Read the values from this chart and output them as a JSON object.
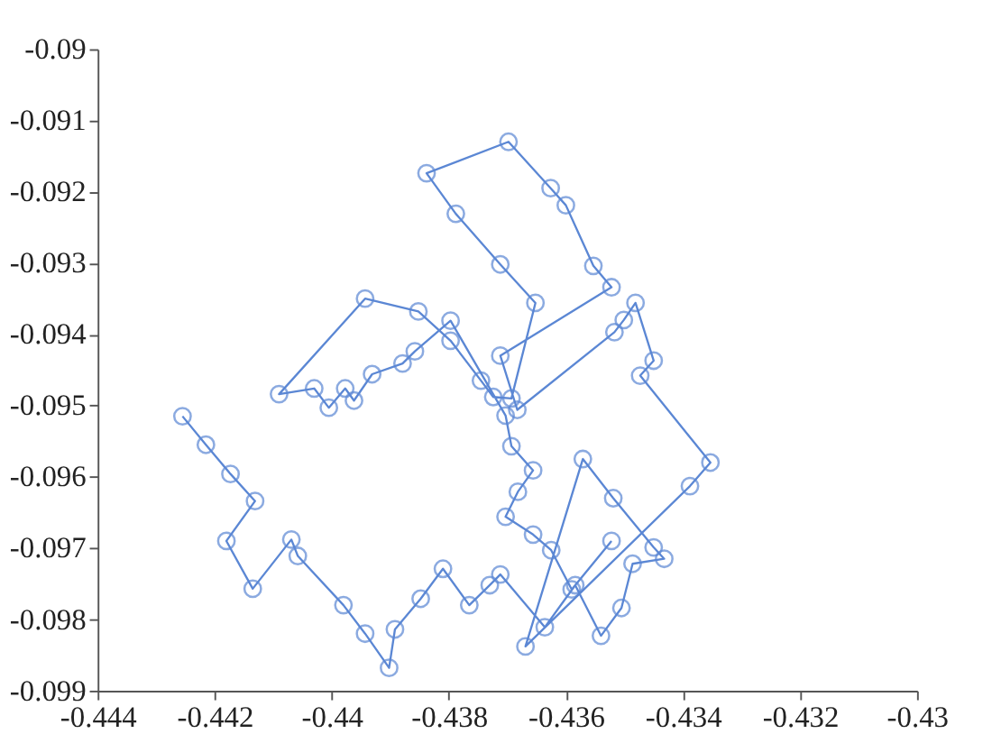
{
  "chart_data": {
    "type": "line",
    "marker": "circle",
    "line_style": "solid",
    "grid": false,
    "xlim": [
      -0.444,
      -0.43
    ],
    "ylim": [
      -0.099,
      -0.09
    ],
    "xticks": [
      -0.444,
      -0.442,
      -0.44,
      -0.438,
      -0.436,
      -0.434,
      -0.432,
      -0.43
    ],
    "yticks": [
      -0.099,
      -0.098,
      -0.097,
      -0.096,
      -0.095,
      -0.094,
      -0.093,
      -0.092,
      -0.091,
      -0.09
    ],
    "series": [
      {
        "color": "#5b87d4",
        "x": [
          -0.44255,
          -0.44215,
          -0.44173,
          -0.44131,
          -0.4418,
          -0.44135,
          -0.44069,
          -0.44058,
          -0.4398,
          -0.43943,
          -0.43902,
          -0.43892,
          -0.43848,
          -0.4381,
          -0.43765,
          -0.4373,
          -0.43712,
          -0.43636,
          -0.43584,
          -0.4354,
          -0.43505,
          -0.43486,
          -0.43432,
          -0.4345,
          -0.43519,
          -0.43571,
          -0.43669,
          -0.43388,
          -0.43353,
          -0.43473,
          -0.4345,
          -0.43481,
          -0.43501,
          -0.43517,
          -0.43683,
          -0.43712,
          -0.43522,
          -0.43553,
          -0.436,
          -0.43626,
          -0.43698,
          -0.43838,
          -0.43788,
          -0.43712,
          -0.43652,
          -0.43693,
          -0.43724,
          -0.43745,
          -0.43797,
          -0.43852,
          -0.43943,
          -0.4409,
          -0.4403,
          -0.44005,
          -0.43977,
          -0.43962,
          -0.43931,
          -0.43879,
          -0.43858,
          -0.43797,
          -0.43703,
          -0.43693,
          -0.43656,
          -0.43682,
          -0.43703,
          -0.43656,
          -0.43625,
          -0.4359,
          -0.43522
        ],
        "values": [
          -0.09515,
          -0.09555,
          -0.09596,
          -0.09634,
          -0.0969,
          -0.09757,
          -0.09688,
          -0.09711,
          -0.0978,
          -0.0982,
          -0.09868,
          -0.09814,
          -0.09771,
          -0.09729,
          -0.0978,
          -0.09752,
          -0.09737,
          -0.09811,
          -0.09752,
          -0.09823,
          -0.09784,
          -0.09722,
          -0.09715,
          -0.09699,
          -0.0963,
          -0.09575,
          -0.09838,
          -0.09613,
          -0.0958,
          -0.09458,
          -0.09437,
          -0.09356,
          -0.0938,
          -0.09397,
          -0.09506,
          -0.0943,
          -0.09334,
          -0.09304,
          -0.09219,
          -0.09195,
          -0.0913,
          -0.09174,
          -0.09231,
          -0.09302,
          -0.09356,
          -0.0949,
          -0.09488,
          -0.09465,
          -0.09409,
          -0.09368,
          -0.0935,
          -0.09484,
          -0.09476,
          -0.09503,
          -0.09476,
          -0.09493,
          -0.09456,
          -0.09441,
          -0.09424,
          -0.09381,
          -0.09514,
          -0.09557,
          -0.09591,
          -0.09621,
          -0.09656,
          -0.09681,
          -0.09703,
          -0.09758,
          -0.0969
        ]
      }
    ]
  }
}
